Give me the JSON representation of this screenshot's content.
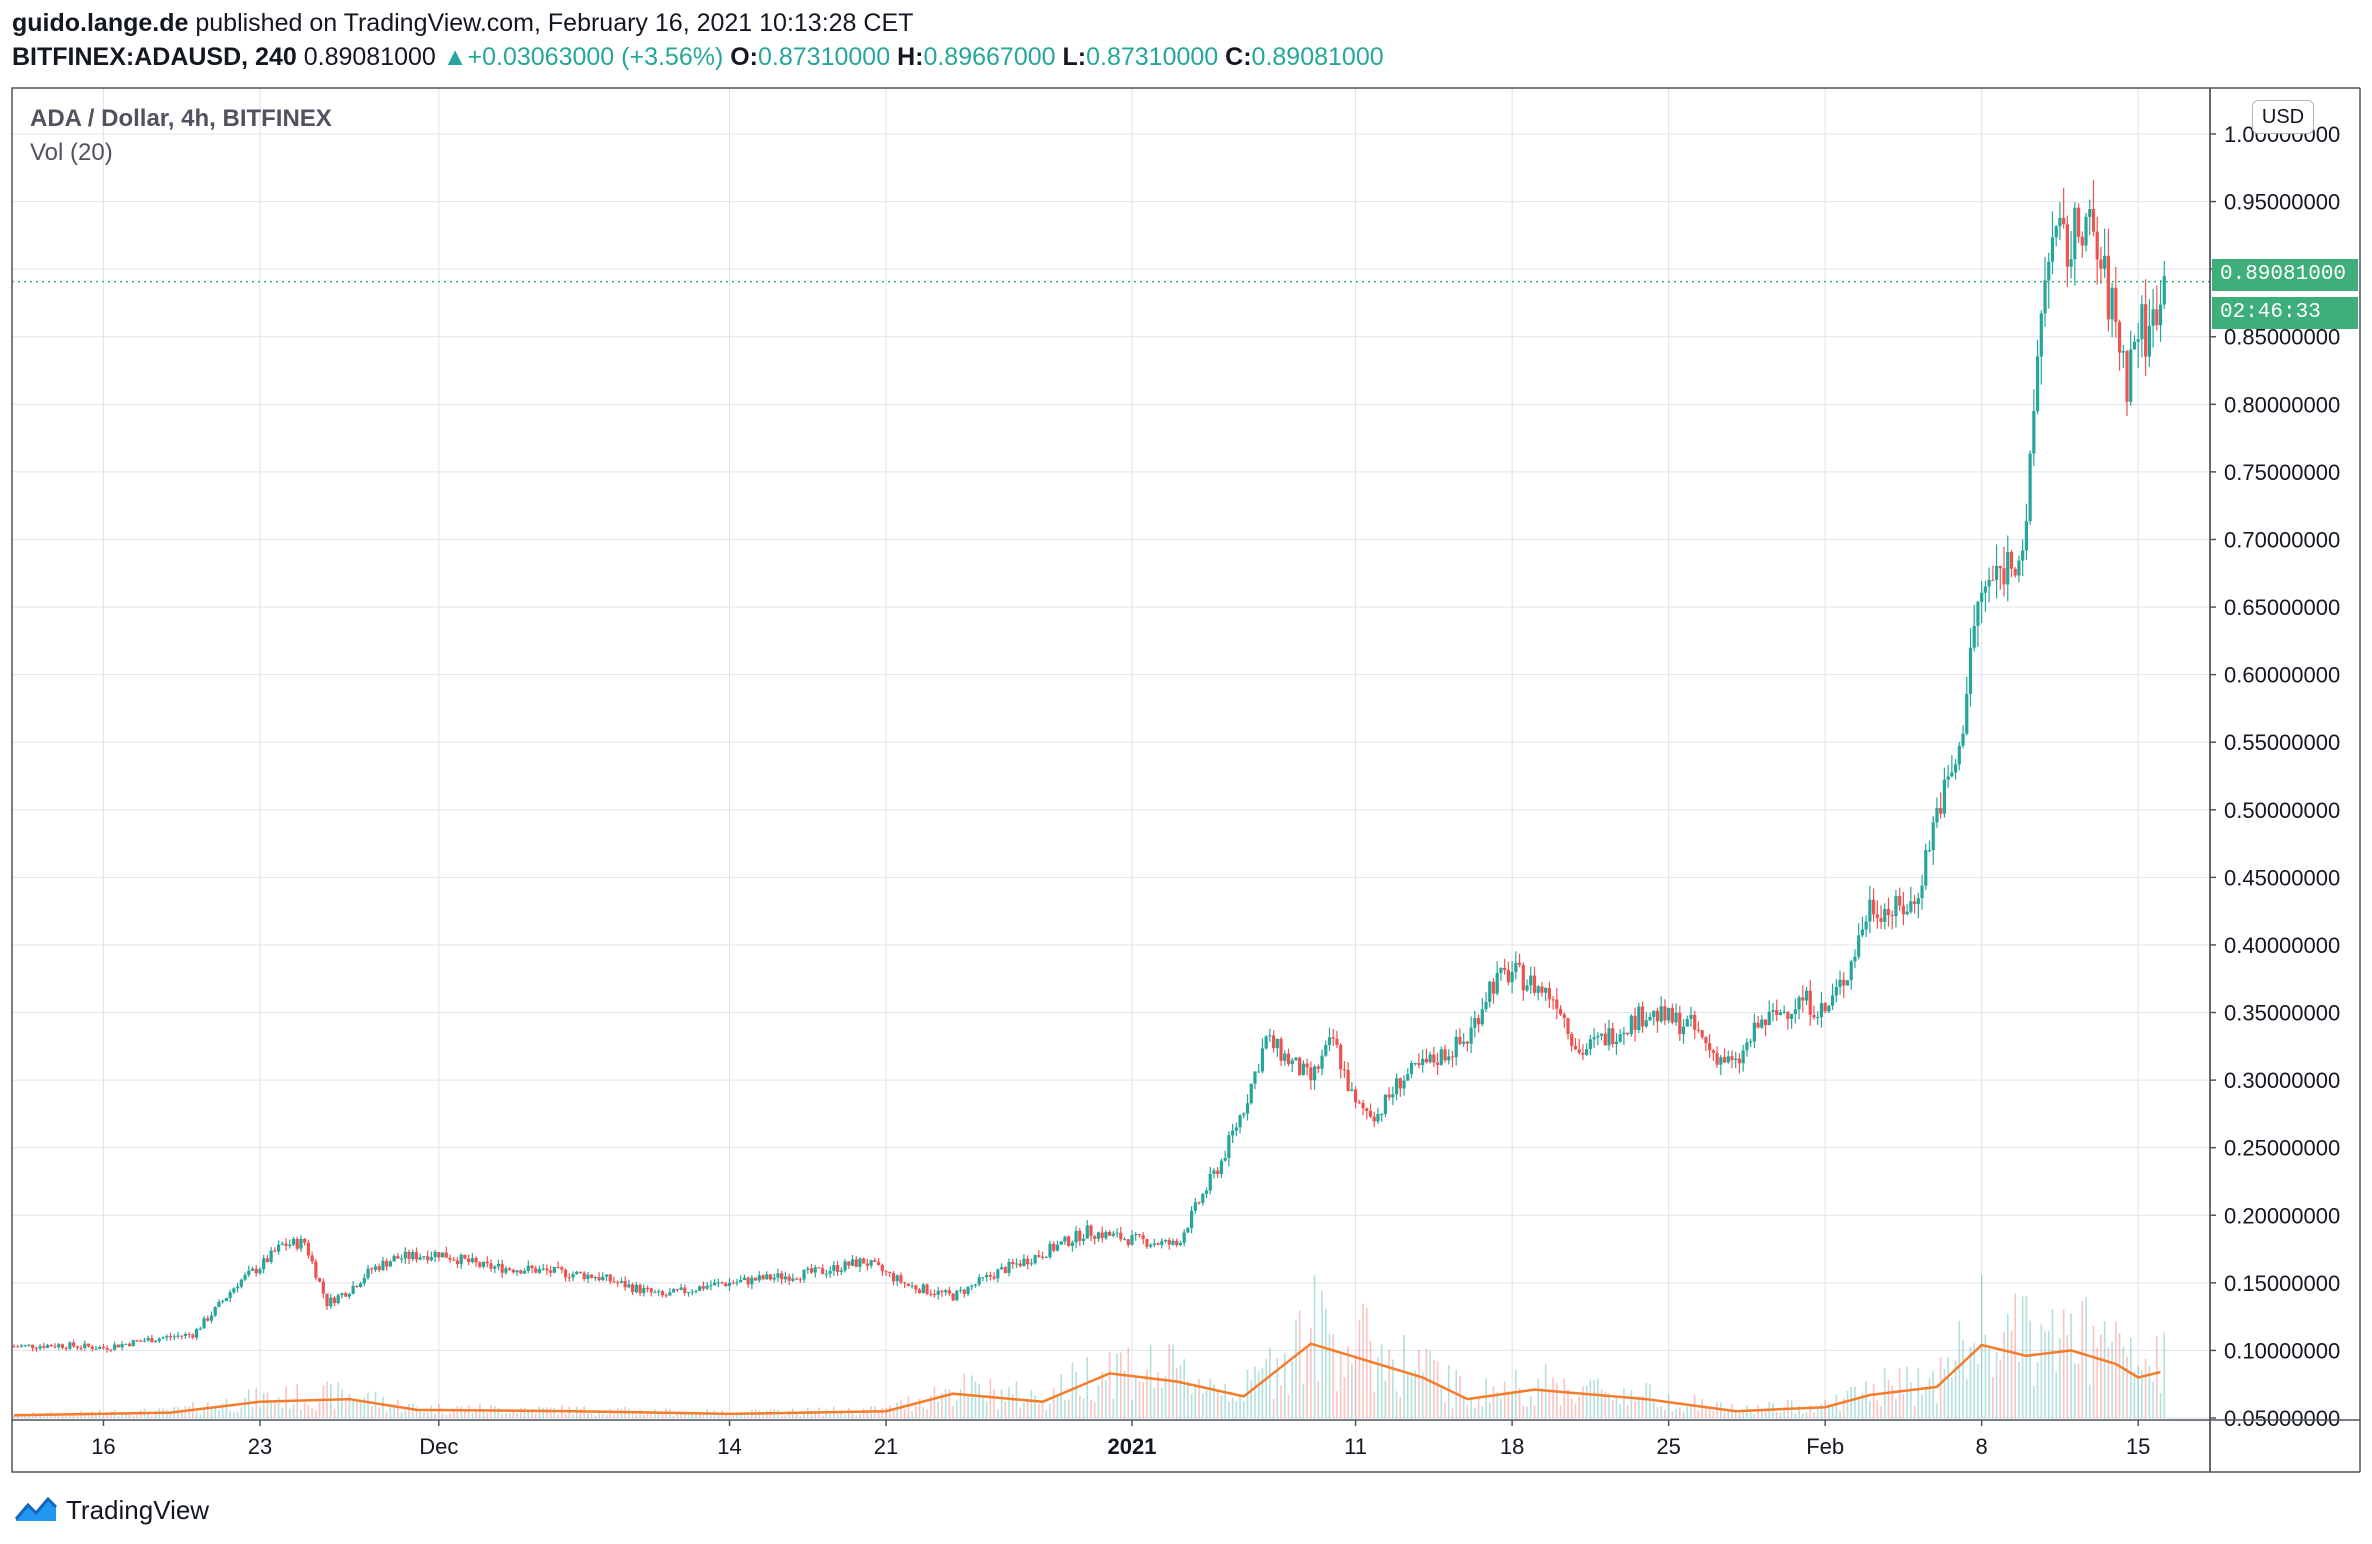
{
  "header": {
    "author": "guido.lange.de",
    "published_text": "published on TradingView.com, February 16, 2021 10:13:28 CET",
    "symbol": "BITFINEX:ADAUSD, 240",
    "last": "0.89081000",
    "arrow": "▲",
    "change": "+0.03063000 (+3.56%)",
    "open_label": "O:",
    "open": "0.87310000",
    "high_label": "H:",
    "high": "0.89667000",
    "low_label": "L:",
    "low": "0.87310000",
    "close_label": "C:",
    "close": "0.89081000"
  },
  "legend": {
    "title": "ADA / Dollar, 4h, BITFINEX",
    "volume": "Vol (20)"
  },
  "price_axis": {
    "currency_badge": "USD",
    "last_price_tag": "0.89081000",
    "countdown_tag": "02:46:33"
  },
  "footer": {
    "brand": "TradingView"
  },
  "colors": {
    "up": "#26a69a",
    "down": "#ef5350",
    "volume_ma": "#f57c2a",
    "last_price": "#3eae7b",
    "grid": "#e0e3eb"
  },
  "chart_data": {
    "type": "candlestick",
    "title": "ADA / Dollar, 4h, BITFINEX",
    "ylim": [
      0.05,
      1.0
    ],
    "yticks": [
      {
        "value": 0.05,
        "label": "0.05000000"
      },
      {
        "value": 0.1,
        "label": "0.10000000"
      },
      {
        "value": 0.15,
        "label": "0.15000000"
      },
      {
        "value": 0.2,
        "label": "0.20000000"
      },
      {
        "value": 0.25,
        "label": "0.25000000"
      },
      {
        "value": 0.3,
        "label": "0.30000000"
      },
      {
        "value": 0.35,
        "label": "0.35000000"
      },
      {
        "value": 0.4,
        "label": "0.40000000"
      },
      {
        "value": 0.45,
        "label": "0.45000000"
      },
      {
        "value": 0.5,
        "label": "0.50000000"
      },
      {
        "value": 0.55,
        "label": "0.55000000"
      },
      {
        "value": 0.6,
        "label": "0.60000000"
      },
      {
        "value": 0.65,
        "label": "0.65000000"
      },
      {
        "value": 0.7,
        "label": "0.70000000"
      },
      {
        "value": 0.75,
        "label": "0.75000000"
      },
      {
        "value": 0.8,
        "label": "0.80000000"
      },
      {
        "value": 0.85,
        "label": "0.85000000"
      },
      {
        "value": 0.9,
        "label": "0.90000000"
      },
      {
        "value": 0.95,
        "label": "0.95000000"
      },
      {
        "value": 1.0,
        "label": "1.00000000"
      }
    ],
    "xticks": [
      {
        "label": "16",
        "date": "2020-11-16",
        "bold": false
      },
      {
        "label": "23",
        "date": "2020-11-23",
        "bold": false
      },
      {
        "label": "Dec",
        "date": "2020-12-01",
        "bold": false
      },
      {
        "label": "14",
        "date": "2020-12-14",
        "bold": false
      },
      {
        "label": "21",
        "date": "2020-12-21",
        "bold": false
      },
      {
        "label": "2021",
        "date": "2021-01-01",
        "bold": true
      },
      {
        "label": "11",
        "date": "2021-01-11",
        "bold": false
      },
      {
        "label": "18",
        "date": "2021-01-18",
        "bold": false
      },
      {
        "label": "25",
        "date": "2021-01-25",
        "bold": false
      },
      {
        "label": "Feb",
        "date": "2021-02-01",
        "bold": false
      },
      {
        "label": "8",
        "date": "2021-02-08",
        "bold": false
      },
      {
        "label": "15",
        "date": "2021-02-15",
        "bold": false
      }
    ],
    "last_price": 0.89081,
    "close_series": {
      "name": "",
      "points": [
        [
          "2020-11-12",
          0.103
        ],
        [
          "2020-11-14",
          0.104
        ],
        [
          "2020-11-16",
          0.102
        ],
        [
          "2020-11-18",
          0.108
        ],
        [
          "2020-11-20",
          0.112
        ],
        [
          "2020-11-21",
          0.13
        ],
        [
          "2020-11-22",
          0.15
        ],
        [
          "2020-11-23",
          0.162
        ],
        [
          "2020-11-24",
          0.178
        ],
        [
          "2020-11-25",
          0.18
        ],
        [
          "2020-11-26",
          0.135
        ],
        [
          "2020-11-27",
          0.145
        ],
        [
          "2020-11-28",
          0.16
        ],
        [
          "2020-11-29",
          0.168
        ],
        [
          "2020-12-01",
          0.172
        ],
        [
          "2020-12-03",
          0.162
        ],
        [
          "2020-12-05",
          0.16
        ],
        [
          "2020-12-08",
          0.155
        ],
        [
          "2020-12-11",
          0.14
        ],
        [
          "2020-12-13",
          0.148
        ],
        [
          "2020-12-15",
          0.152
        ],
        [
          "2020-12-18",
          0.158
        ],
        [
          "2020-12-20",
          0.166
        ],
        [
          "2020-12-22",
          0.148
        ],
        [
          "2020-12-24",
          0.14
        ],
        [
          "2020-12-26",
          0.158
        ],
        [
          "2020-12-28",
          0.172
        ],
        [
          "2020-12-30",
          0.188
        ],
        [
          "2021-01-01",
          0.182
        ],
        [
          "2021-01-03",
          0.178
        ],
        [
          "2021-01-04",
          0.21
        ],
        [
          "2021-01-05",
          0.24
        ],
        [
          "2021-01-06",
          0.28
        ],
        [
          "2021-01-07",
          0.33
        ],
        [
          "2021-01-08",
          0.315
        ],
        [
          "2021-01-09",
          0.3
        ],
        [
          "2021-01-10",
          0.33
        ],
        [
          "2021-01-11",
          0.28
        ],
        [
          "2021-01-12",
          0.275
        ],
        [
          "2021-01-13",
          0.3
        ],
        [
          "2021-01-14",
          0.31
        ],
        [
          "2021-01-16",
          0.33
        ],
        [
          "2021-01-17",
          0.37
        ],
        [
          "2021-01-18",
          0.38
        ],
        [
          "2021-01-20",
          0.36
        ],
        [
          "2021-01-21",
          0.32
        ],
        [
          "2021-01-22",
          0.33
        ],
        [
          "2021-01-24",
          0.35
        ],
        [
          "2021-01-26",
          0.34
        ],
        [
          "2021-01-27",
          0.32
        ],
        [
          "2021-01-28",
          0.31
        ],
        [
          "2021-01-29",
          0.34
        ],
        [
          "2021-01-31",
          0.36
        ],
        [
          "2021-02-01",
          0.35
        ],
        [
          "2021-02-02",
          0.38
        ],
        [
          "2021-02-03",
          0.43
        ],
        [
          "2021-02-04",
          0.425
        ],
        [
          "2021-02-05",
          0.43
        ],
        [
          "2021-02-06",
          0.5
        ],
        [
          "2021-02-07",
          0.54
        ],
        [
          "2021-02-07T12",
          0.62
        ],
        [
          "2021-02-08",
          0.66
        ],
        [
          "2021-02-09",
          0.68
        ],
        [
          "2021-02-10",
          0.7
        ],
        [
          "2021-02-10T12",
          0.84
        ],
        [
          "2021-02-11",
          0.92
        ],
        [
          "2021-02-12",
          0.915
        ],
        [
          "2021-02-12T12",
          0.94
        ],
        [
          "2021-02-13",
          0.92
        ],
        [
          "2021-02-14",
          0.86
        ],
        [
          "2021-02-14T12",
          0.82
        ],
        [
          "2021-02-15",
          0.86
        ],
        [
          "2021-02-15T12",
          0.85
        ],
        [
          "2021-02-16",
          0.891
        ]
      ]
    },
    "volume_ma_series": {
      "name": "Vol (20)",
      "points": [
        [
          "2020-11-12",
          0.052
        ],
        [
          "2020-11-19",
          0.054
        ],
        [
          "2020-11-23",
          0.062
        ],
        [
          "2020-11-27",
          0.064
        ],
        [
          "2020-11-30",
          0.056
        ],
        [
          "2020-12-07",
          0.055
        ],
        [
          "2020-12-14",
          0.053
        ],
        [
          "2020-12-21",
          0.055
        ],
        [
          "2020-12-24",
          0.068
        ],
        [
          "2020-12-28",
          0.062
        ],
        [
          "2020-12-31",
          0.083
        ],
        [
          "2021-01-03",
          0.077
        ],
        [
          "2021-01-06",
          0.066
        ],
        [
          "2021-01-09",
          0.105
        ],
        [
          "2021-01-11",
          0.095
        ],
        [
          "2021-01-14",
          0.08
        ],
        [
          "2021-01-16",
          0.064
        ],
        [
          "2021-01-19",
          0.071
        ],
        [
          "2021-01-24",
          0.064
        ],
        [
          "2021-01-28",
          0.055
        ],
        [
          "2021-02-01",
          0.058
        ],
        [
          "2021-02-03",
          0.067
        ],
        [
          "2021-02-06",
          0.073
        ],
        [
          "2021-02-08",
          0.104
        ],
        [
          "2021-02-10",
          0.096
        ],
        [
          "2021-02-12",
          0.1
        ],
        [
          "2021-02-14",
          0.09
        ],
        [
          "2021-02-15",
          0.08
        ],
        [
          "2021-02-16",
          0.084
        ]
      ]
    }
  }
}
